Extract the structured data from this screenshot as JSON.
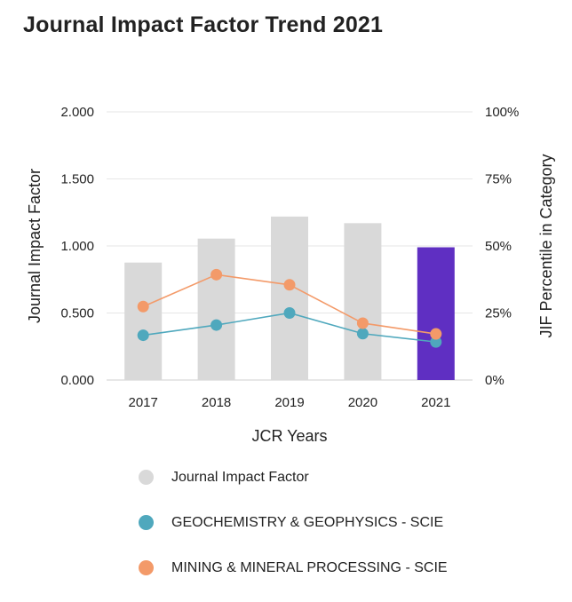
{
  "title": "Journal Impact Factor Trend 2021",
  "chart_data": {
    "type": "bar",
    "title": "Journal Impact Factor Trend 2021",
    "categories": [
      "2017",
      "2018",
      "2019",
      "2020",
      "2021"
    ],
    "xlabel": "JCR Years",
    "ylabel": "Journal Impact Factor",
    "y2label": "JIF Percentile in Category",
    "ylim": [
      0,
      2.0
    ],
    "y2lim": [
      0,
      100
    ],
    "yticks": [
      "0.000",
      "0.500",
      "1.000",
      "1.500",
      "2.000"
    ],
    "y2ticks": [
      "0%",
      "25%",
      "50%",
      "75%",
      "100%"
    ],
    "grid": true,
    "series": [
      {
        "name": "Journal Impact Factor",
        "kind": "bar",
        "axis": "left",
        "values": [
          0.876,
          1.055,
          1.219,
          1.17,
          0.99
        ],
        "color": "#d9d9d9",
        "highlight_color": "#5f2fc2",
        "highlight_index": 4
      },
      {
        "name": "GEOCHEMISTRY & GEOPHYSICS - SCIE",
        "kind": "line",
        "axis": "right",
        "values": [
          16.7,
          20.5,
          25.0,
          17.3,
          14.2
        ],
        "color": "#4fa8bd"
      },
      {
        "name": "MINING & MINERAL PROCESSING - SCIE",
        "kind": "line",
        "axis": "right",
        "values": [
          27.4,
          39.3,
          35.5,
          21.2,
          17.2
        ],
        "color": "#f39a69"
      }
    ],
    "legend": [
      {
        "label": "Journal Impact Factor",
        "color": "#d9d9d9"
      },
      {
        "label": "GEOCHEMISTRY & GEOPHYSICS - SCIE",
        "color": "#4fa8bd"
      },
      {
        "label": "MINING & MINERAL PROCESSING - SCIE",
        "color": "#f39a69"
      }
    ]
  }
}
